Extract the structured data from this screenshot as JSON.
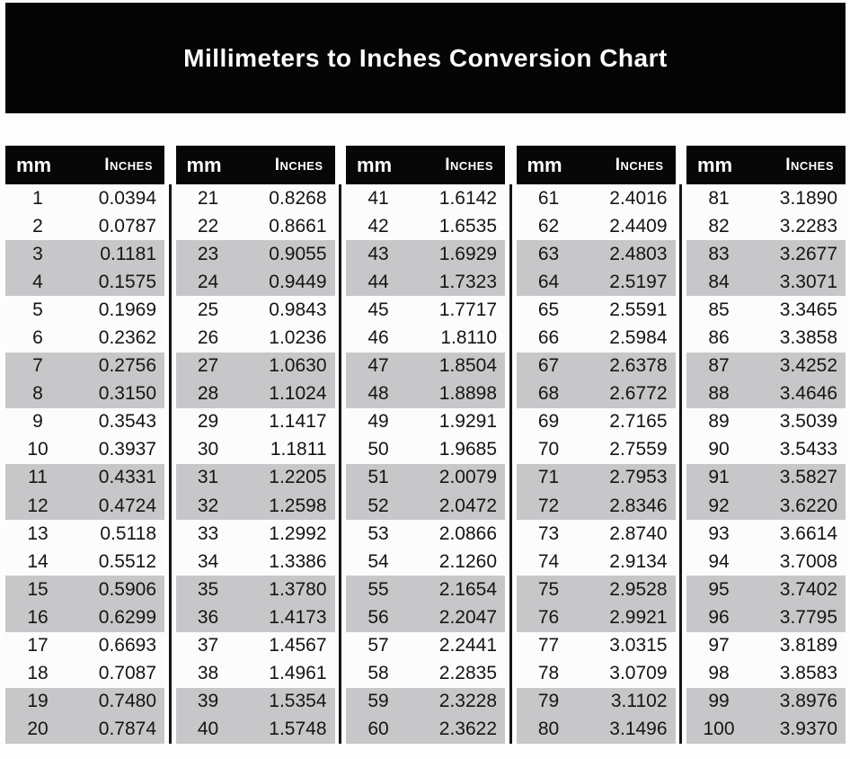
{
  "title": "Millimeters to Inches Conversion Chart",
  "columns": {
    "mm": "mm",
    "inches": "Inches"
  },
  "colors": {
    "banner": "#050505",
    "table_header": "#070707",
    "shaded_row": "#c7c7c9",
    "plain_row": "#fcfcfc",
    "divider": "#161616",
    "text": "#151515",
    "header_text": "#ffffff"
  },
  "chart_data": {
    "type": "table",
    "title": "Millimeters to Inches Conversion Chart",
    "columns": [
      "mm",
      "Inches"
    ],
    "layout": "5 side-by-side sub-tables of 20 rows each, separated by vertical black dividers; rows shaded gray in alternating pairs (3-4, 7-8, 11-12, 15-16, 19-20 of each block)",
    "tables": [
      {
        "rows": [
          [
            1,
            "0.0394"
          ],
          [
            2,
            "0.0787"
          ],
          [
            3,
            "0.1181"
          ],
          [
            4,
            "0.1575"
          ],
          [
            5,
            "0.1969"
          ],
          [
            6,
            "0.2362"
          ],
          [
            7,
            "0.2756"
          ],
          [
            8,
            "0.3150"
          ],
          [
            9,
            "0.3543"
          ],
          [
            10,
            "0.3937"
          ],
          [
            11,
            "0.4331"
          ],
          [
            12,
            "0.4724"
          ],
          [
            13,
            "0.5118"
          ],
          [
            14,
            "0.5512"
          ],
          [
            15,
            "0.5906"
          ],
          [
            16,
            "0.6299"
          ],
          [
            17,
            "0.6693"
          ],
          [
            18,
            "0.7087"
          ],
          [
            19,
            "0.7480"
          ],
          [
            20,
            "0.7874"
          ]
        ]
      },
      {
        "rows": [
          [
            21,
            "0.8268"
          ],
          [
            22,
            "0.8661"
          ],
          [
            23,
            "0.9055"
          ],
          [
            24,
            "0.9449"
          ],
          [
            25,
            "0.9843"
          ],
          [
            26,
            "1.0236"
          ],
          [
            27,
            "1.0630"
          ],
          [
            28,
            "1.1024"
          ],
          [
            29,
            "1.1417"
          ],
          [
            30,
            "1.1811"
          ],
          [
            31,
            "1.2205"
          ],
          [
            32,
            "1.2598"
          ],
          [
            33,
            "1.2992"
          ],
          [
            34,
            "1.3386"
          ],
          [
            35,
            "1.3780"
          ],
          [
            36,
            "1.4173"
          ],
          [
            37,
            "1.4567"
          ],
          [
            38,
            "1.4961"
          ],
          [
            39,
            "1.5354"
          ],
          [
            40,
            "1.5748"
          ]
        ]
      },
      {
        "rows": [
          [
            41,
            "1.6142"
          ],
          [
            42,
            "1.6535"
          ],
          [
            43,
            "1.6929"
          ],
          [
            44,
            "1.7323"
          ],
          [
            45,
            "1.7717"
          ],
          [
            46,
            "1.8110"
          ],
          [
            47,
            "1.8504"
          ],
          [
            48,
            "1.8898"
          ],
          [
            49,
            "1.9291"
          ],
          [
            50,
            "1.9685"
          ],
          [
            51,
            "2.0079"
          ],
          [
            52,
            "2.0472"
          ],
          [
            53,
            "2.0866"
          ],
          [
            54,
            "2.1260"
          ],
          [
            55,
            "2.1654"
          ],
          [
            56,
            "2.2047"
          ],
          [
            57,
            "2.2441"
          ],
          [
            58,
            "2.2835"
          ],
          [
            59,
            "2.3228"
          ],
          [
            60,
            "2.3622"
          ]
        ]
      },
      {
        "rows": [
          [
            61,
            "2.4016"
          ],
          [
            62,
            "2.4409"
          ],
          [
            63,
            "2.4803"
          ],
          [
            64,
            "2.5197"
          ],
          [
            65,
            "2.5591"
          ],
          [
            66,
            "2.5984"
          ],
          [
            67,
            "2.6378"
          ],
          [
            68,
            "2.6772"
          ],
          [
            69,
            "2.7165"
          ],
          [
            70,
            "2.7559"
          ],
          [
            71,
            "2.7953"
          ],
          [
            72,
            "2.8346"
          ],
          [
            73,
            "2.8740"
          ],
          [
            74,
            "2.9134"
          ],
          [
            75,
            "2.9528"
          ],
          [
            76,
            "2.9921"
          ],
          [
            77,
            "3.0315"
          ],
          [
            78,
            "3.0709"
          ],
          [
            79,
            "3.1102"
          ],
          [
            80,
            "3.1496"
          ]
        ]
      },
      {
        "rows": [
          [
            81,
            "3.1890"
          ],
          [
            82,
            "3.2283"
          ],
          [
            83,
            "3.2677"
          ],
          [
            84,
            "3.3071"
          ],
          [
            85,
            "3.3465"
          ],
          [
            86,
            "3.3858"
          ],
          [
            87,
            "3.4252"
          ],
          [
            88,
            "3.4646"
          ],
          [
            89,
            "3.5039"
          ],
          [
            90,
            "3.5433"
          ],
          [
            91,
            "3.5827"
          ],
          [
            92,
            "3.6220"
          ],
          [
            93,
            "3.6614"
          ],
          [
            94,
            "3.7008"
          ],
          [
            95,
            "3.7402"
          ],
          [
            96,
            "3.7795"
          ],
          [
            97,
            "3.8189"
          ],
          [
            98,
            "3.8583"
          ],
          [
            99,
            "3.8976"
          ],
          [
            100,
            "3.9370"
          ]
        ]
      }
    ]
  }
}
